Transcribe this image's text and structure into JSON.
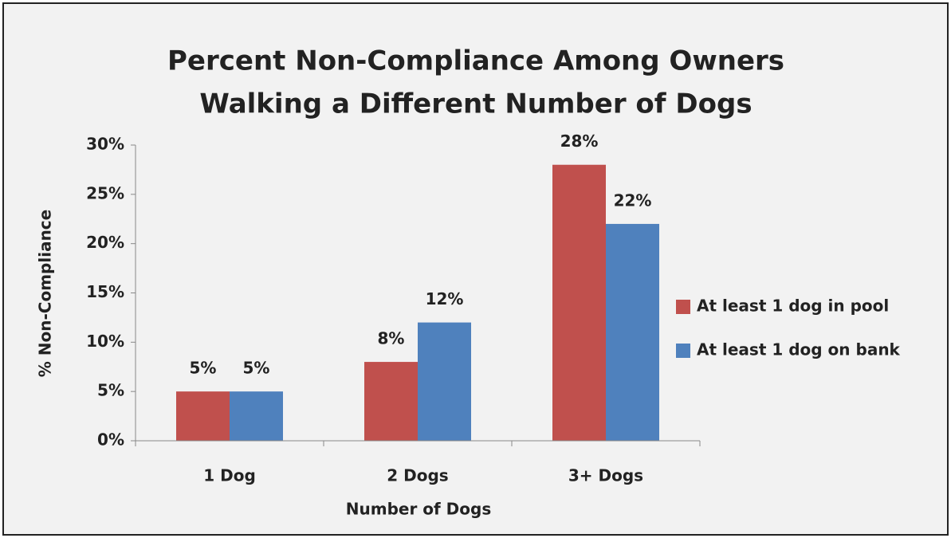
{
  "chart_data": {
    "type": "bar",
    "title": [
      "Percent Non-Compliance Among Owners",
      "Walking a Different Number of Dogs"
    ],
    "x_label": "Number of Dogs",
    "y_label": "% Non-Compliance",
    "categories": [
      "1 Dog",
      "2 Dogs",
      "3+ Dogs"
    ],
    "series": [
      {
        "name": "At least 1 dog in pool",
        "color": "#c0504d",
        "values": [
          5,
          8,
          28
        ],
        "value_labels": [
          "5%",
          "8%",
          "28%"
        ]
      },
      {
        "name": "At least 1 dog on bank",
        "color": "#4f81bd",
        "values": [
          5,
          12,
          22
        ],
        "value_labels": [
          "5%",
          "12%",
          "22%"
        ]
      }
    ],
    "ylim": [
      0,
      30
    ],
    "yticks": [
      {
        "value": 0,
        "label": "0%"
      },
      {
        "value": 5,
        "label": "5%"
      },
      {
        "value": 10,
        "label": "10%"
      },
      {
        "value": 15,
        "label": "15%"
      },
      {
        "value": 20,
        "label": "20%"
      },
      {
        "value": 25,
        "label": "25%"
      },
      {
        "value": 30,
        "label": "30%"
      }
    ],
    "legend": "right"
  }
}
